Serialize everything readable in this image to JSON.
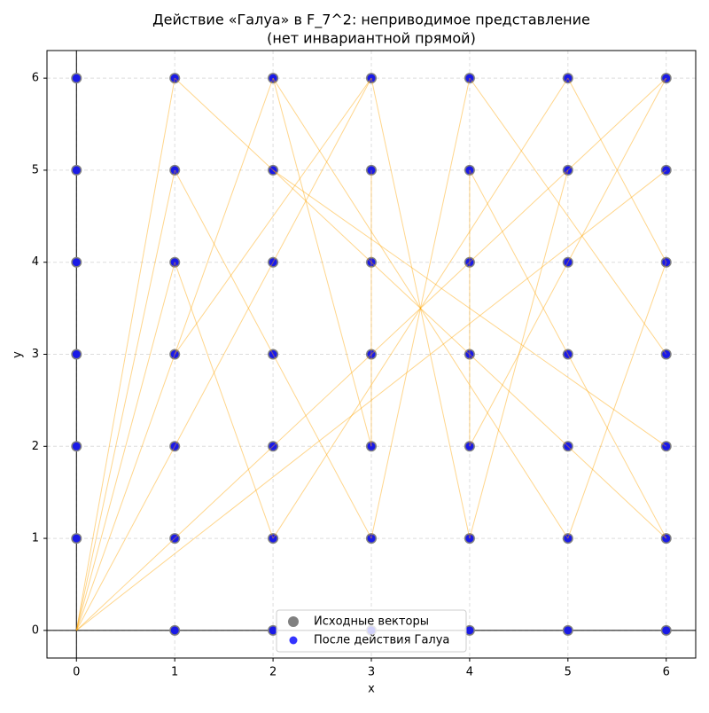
{
  "chart_data": {
    "type": "scatter",
    "title": "Действие «Галуа» в F_7^2: неприводимое представление",
    "subtitle": "(нет инвариантной прямой)",
    "x_label": "x",
    "y_label": "y",
    "xlim": [
      -0.3,
      6.3
    ],
    "ylim": [
      -0.3,
      6.3
    ],
    "xticks": [
      0,
      1,
      2,
      3,
      4,
      5,
      6
    ],
    "yticks": [
      0,
      1,
      2,
      3,
      4,
      5,
      6
    ],
    "grid": true,
    "legend": "lower center",
    "series": [
      {
        "name": "Исходные векторы",
        "color": "#808080",
        "x": [
          0,
          0,
          0,
          0,
          0,
          0,
          1,
          1,
          1,
          1,
          1,
          1,
          1,
          2,
          2,
          2,
          2,
          2,
          2,
          2,
          3,
          3,
          3,
          3,
          3,
          3,
          3,
          4,
          4,
          4,
          4,
          4,
          4,
          4,
          5,
          5,
          5,
          5,
          5,
          5,
          5,
          6,
          6,
          6,
          6,
          6,
          6,
          6
        ],
        "y": [
          1,
          2,
          3,
          4,
          5,
          6,
          0,
          1,
          2,
          3,
          4,
          5,
          6,
          0,
          1,
          2,
          3,
          4,
          5,
          6,
          0,
          1,
          2,
          3,
          4,
          5,
          6,
          0,
          1,
          2,
          3,
          4,
          5,
          6,
          0,
          1,
          2,
          3,
          4,
          5,
          6,
          0,
          1,
          2,
          3,
          4,
          5,
          6
        ]
      },
      {
        "name": "После действия Галуа",
        "color": "#0000ff",
        "x": [
          0,
          0,
          0,
          0,
          0,
          0,
          1,
          1,
          1,
          1,
          1,
          1,
          1,
          2,
          2,
          2,
          2,
          2,
          2,
          2,
          3,
          3,
          3,
          3,
          3,
          3,
          3,
          4,
          4,
          4,
          4,
          4,
          4,
          4,
          5,
          5,
          5,
          5,
          5,
          5,
          5,
          6,
          6,
          6,
          6,
          6,
          6,
          6
        ],
        "y": [
          1,
          2,
          3,
          4,
          5,
          6,
          0,
          1,
          2,
          3,
          4,
          5,
          6,
          0,
          1,
          2,
          3,
          4,
          5,
          6,
          0,
          1,
          2,
          3,
          4,
          5,
          6,
          0,
          1,
          2,
          3,
          4,
          5,
          6,
          0,
          1,
          2,
          3,
          4,
          5,
          6,
          0,
          1,
          2,
          3,
          4,
          5,
          6
        ]
      }
    ],
    "segment_color": "#ffa500",
    "segments": [
      {
        "from": [
          0,
          0
        ],
        "to": [
          6,
          6
        ]
      },
      {
        "from": [
          0,
          0
        ],
        "to": [
          1,
          6
        ]
      },
      {
        "from": [
          0,
          0
        ],
        "to": [
          1,
          5
        ]
      },
      {
        "from": [
          0,
          0
        ],
        "to": [
          1,
          4
        ]
      },
      {
        "from": [
          0,
          0
        ],
        "to": [
          2,
          6
        ]
      },
      {
        "from": [
          0,
          0
        ],
        "to": [
          3,
          6
        ]
      },
      {
        "from": [
          0,
          0
        ],
        "to": [
          6,
          5
        ]
      },
      {
        "from": [
          1,
          6
        ],
        "to": [
          6,
          1
        ]
      },
      {
        "from": [
          2,
          6
        ],
        "to": [
          5,
          1
        ]
      },
      {
        "from": [
          3,
          6
        ],
        "to": [
          4,
          1
        ]
      },
      {
        "from": [
          4,
          6
        ],
        "to": [
          3,
          1
        ]
      },
      {
        "from": [
          5,
          6
        ],
        "to": [
          2,
          1
        ]
      },
      {
        "from": [
          1,
          5
        ],
        "to": [
          3,
          1
        ]
      },
      {
        "from": [
          1,
          4
        ],
        "to": [
          2,
          1
        ]
      },
      {
        "from": [
          2,
          6
        ],
        "to": [
          3,
          2
        ]
      },
      {
        "from": [
          3,
          5
        ],
        "to": [
          3,
          2
        ]
      },
      {
        "from": [
          3,
          6
        ],
        "to": [
          1,
          3
        ]
      },
      {
        "from": [
          4,
          6
        ],
        "to": [
          6,
          3
        ]
      },
      {
        "from": [
          4,
          5
        ],
        "to": [
          4,
          2
        ]
      },
      {
        "from": [
          5,
          6
        ],
        "to": [
          6,
          4
        ]
      },
      {
        "from": [
          4,
          5
        ],
        "to": [
          6,
          1
        ]
      },
      {
        "from": [
          6,
          4
        ],
        "to": [
          5,
          1
        ]
      },
      {
        "from": [
          2,
          5
        ],
        "to": [
          6,
          2
        ]
      },
      {
        "from": [
          5,
          5
        ],
        "to": [
          4,
          1
        ]
      },
      {
        "from": [
          6,
          6
        ],
        "to": [
          4,
          2
        ]
      }
    ]
  }
}
